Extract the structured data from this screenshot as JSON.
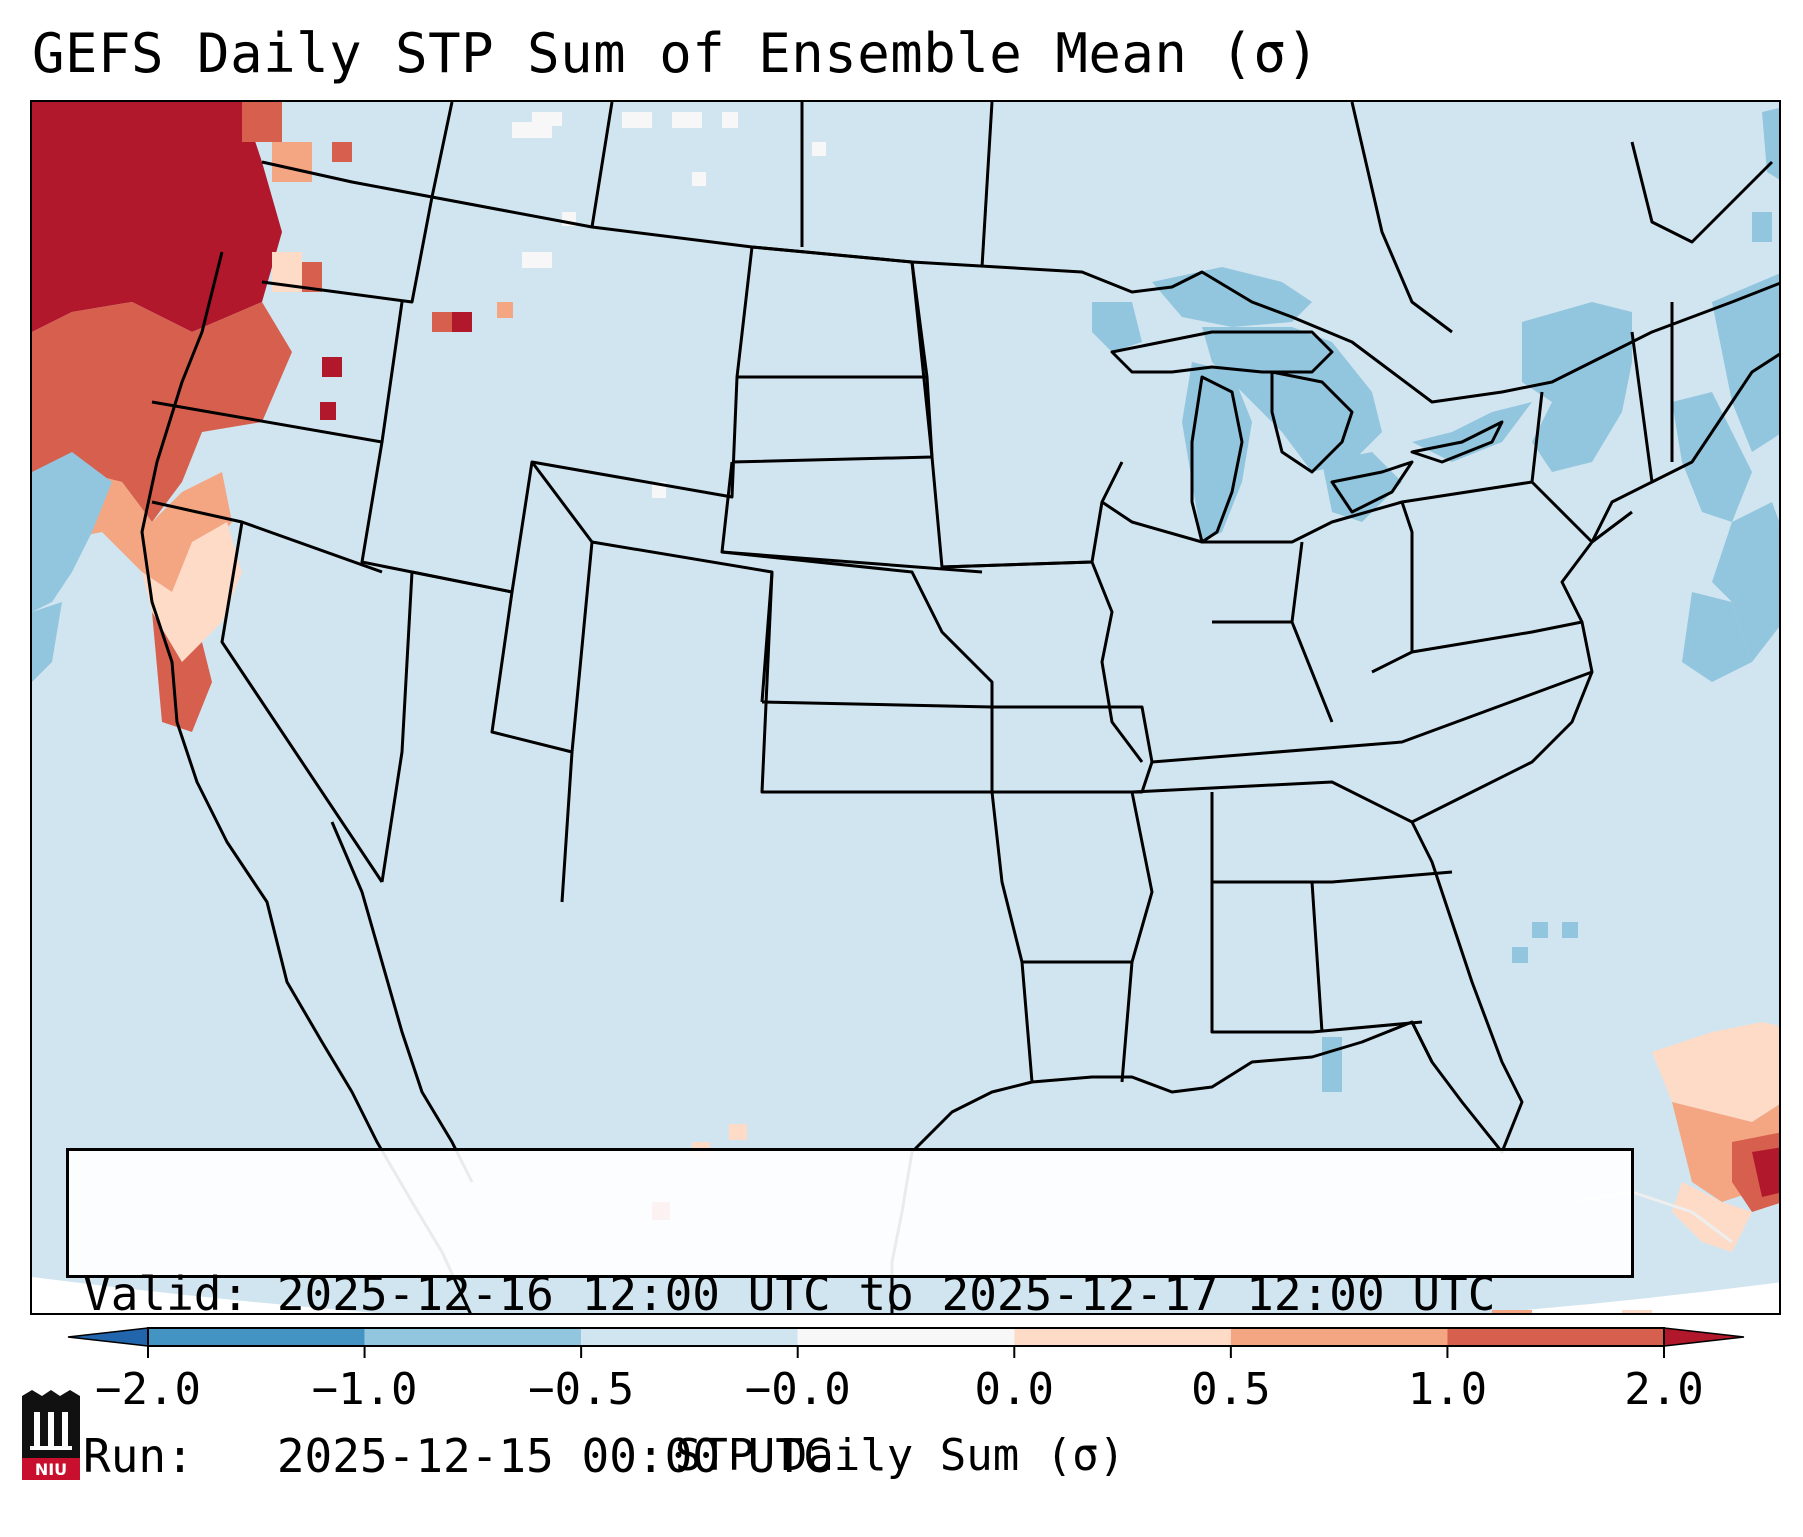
{
  "title": "GEFS Daily STP Sum of Ensemble Mean (σ)",
  "info": {
    "valid_line": "Valid: 2025-12-16 12:00 UTC to 2025-12-17 12:00 UTC",
    "run_line": "Run:   2025-12-15 00:00 UTC"
  },
  "colorbar": {
    "label": "STP Daily Sum (σ)",
    "ticks": [
      "−2.0",
      "−1.0",
      "−0.5",
      "−0.0",
      "0.0",
      "0.5",
      "1.0",
      "2.0"
    ],
    "bin_colors": [
      "#4393c3",
      "#92c5de",
      "#d1e5f0",
      "#f7f7f7",
      "#fddbc7",
      "#f4a582",
      "#d6604d"
    ],
    "extend_low_color": "#2166ac",
    "extend_high_color": "#b2182b"
  },
  "map": {
    "background_color": "#d1e5f0",
    "border_color": "#000000",
    "anomaly_regions": [
      {
        "region": "Pacific Northwest coast",
        "level": "very high"
      },
      {
        "region": "Bahamas / western Atlantic",
        "level": "high"
      },
      {
        "region": "Great Lakes",
        "level": "low"
      },
      {
        "region": "Northeast US / Atlantic",
        "level": "low"
      }
    ]
  },
  "logo": {
    "text": "NIU"
  }
}
